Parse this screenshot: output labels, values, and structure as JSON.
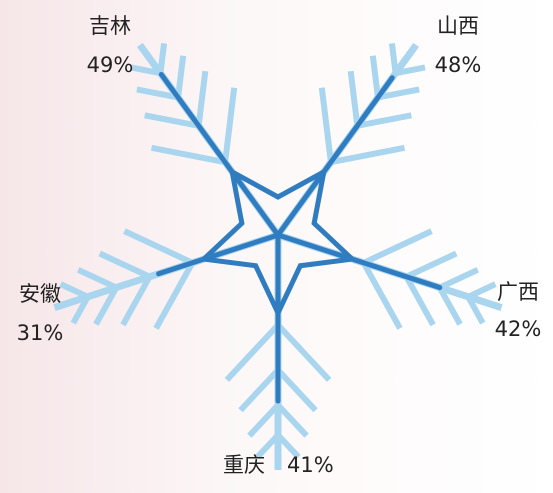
{
  "chart_data": {
    "type": "radar",
    "categories": [
      "吉林",
      "山西",
      "广西",
      "重庆",
      "安徽"
    ],
    "values": [
      49,
      48,
      42,
      41,
      31
    ],
    "value_labels": [
      "49%",
      "48%",
      "42%",
      "41%",
      "31%"
    ],
    "color": "#2f7cc0",
    "decoration_color": "#a9d5ef"
  }
}
